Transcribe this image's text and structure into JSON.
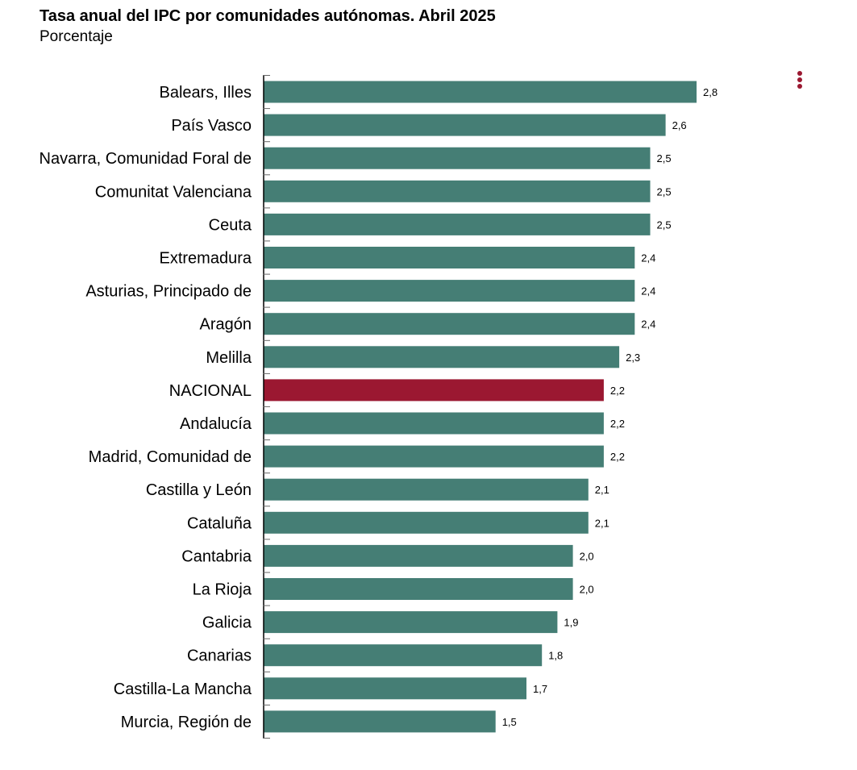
{
  "header": {
    "title": "Tasa anual del IPC por comunidades autónomas. Abril 2025",
    "subtitle": "Porcentaje"
  },
  "menu": {
    "icon": "kebab-menu-icon",
    "color": "#9b1831"
  },
  "colors": {
    "bar": "#457e75",
    "highlight": "#9b1831",
    "axis": "#000000",
    "tick": "#666666"
  },
  "chart_data": {
    "type": "bar",
    "orientation": "horizontal",
    "title": "Tasa anual del IPC por comunidades autónomas. Abril 2025",
    "subtitle": "Porcentaje",
    "xlabel": "",
    "ylabel": "",
    "grid": false,
    "legend": "none",
    "xlim": [
      0,
      2.8
    ],
    "highlight_category": "NACIONAL",
    "categories": [
      "Balears, Illes",
      "País Vasco",
      "Navarra, Comunidad Foral de",
      "Comunitat Valenciana",
      "Ceuta",
      "Extremadura",
      "Asturias, Principado de",
      "Aragón",
      "Melilla",
      "NACIONAL",
      "Andalucía",
      "Madrid, Comunidad de",
      "Castilla y León",
      "Cataluña",
      "Cantabria",
      "La Rioja",
      "Galicia",
      "Canarias",
      "Castilla-La Mancha",
      "Murcia, Región de"
    ],
    "values": [
      2.8,
      2.6,
      2.5,
      2.5,
      2.5,
      2.4,
      2.4,
      2.4,
      2.3,
      2.2,
      2.2,
      2.2,
      2.1,
      2.1,
      2.0,
      2.0,
      1.9,
      1.8,
      1.7,
      1.5
    ],
    "data_labels": [
      "2,8",
      "2,6",
      "2,5",
      "2,5",
      "2,5",
      "2,4",
      "2,4",
      "2,4",
      "2,3",
      "2,2",
      "2,2",
      "2,2",
      "2,1",
      "2,1",
      "2,0",
      "2,0",
      "1,9",
      "1,8",
      "1,7",
      "1,5"
    ]
  }
}
